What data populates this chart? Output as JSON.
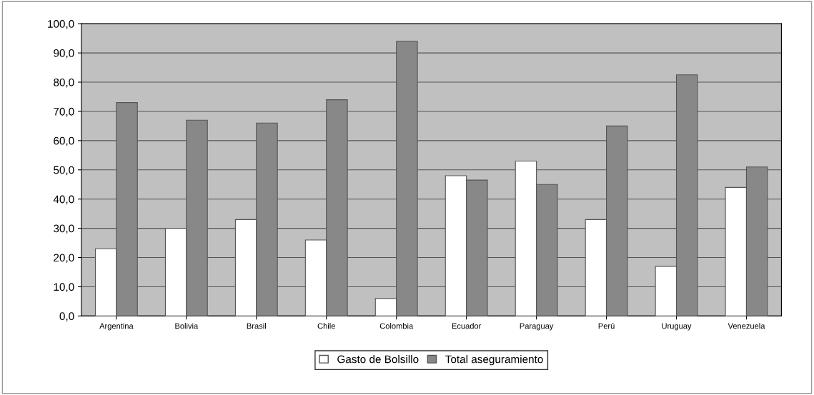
{
  "chart_data": {
    "type": "bar",
    "categories": [
      "Argentina",
      "Bolivia",
      "Brasil",
      "Chile",
      "Colombia",
      "Ecuador",
      "Paraguay",
      "Perú",
      "Uruguay",
      "Venezuela"
    ],
    "series": [
      {
        "name": "Gasto de Bolsillo",
        "color": "#ffffff",
        "values": [
          23,
          30,
          33,
          26,
          6,
          48,
          53,
          33,
          17,
          44
        ]
      },
      {
        "name": "Total aseguramiento",
        "color": "#888888",
        "values": [
          73,
          67,
          66,
          74,
          94,
          46.5,
          45,
          65,
          82.5,
          51
        ]
      }
    ],
    "ylim": [
      0,
      100
    ],
    "yticks": [
      {
        "value": 0,
        "label": "0,0"
      },
      {
        "value": 10,
        "label": "10,0"
      },
      {
        "value": 20,
        "label": "20,0"
      },
      {
        "value": 30,
        "label": "30,0"
      },
      {
        "value": 40,
        "label": "40,0"
      },
      {
        "value": 50,
        "label": "50,0"
      },
      {
        "value": 60,
        "label": "60,0"
      },
      {
        "value": 70,
        "label": "70,0"
      },
      {
        "value": 80,
        "label": "80,0"
      },
      {
        "value": 90,
        "label": "90,0"
      },
      {
        "value": 100,
        "label": "100,0"
      }
    ],
    "grid": "y",
    "legend": "bottom"
  }
}
